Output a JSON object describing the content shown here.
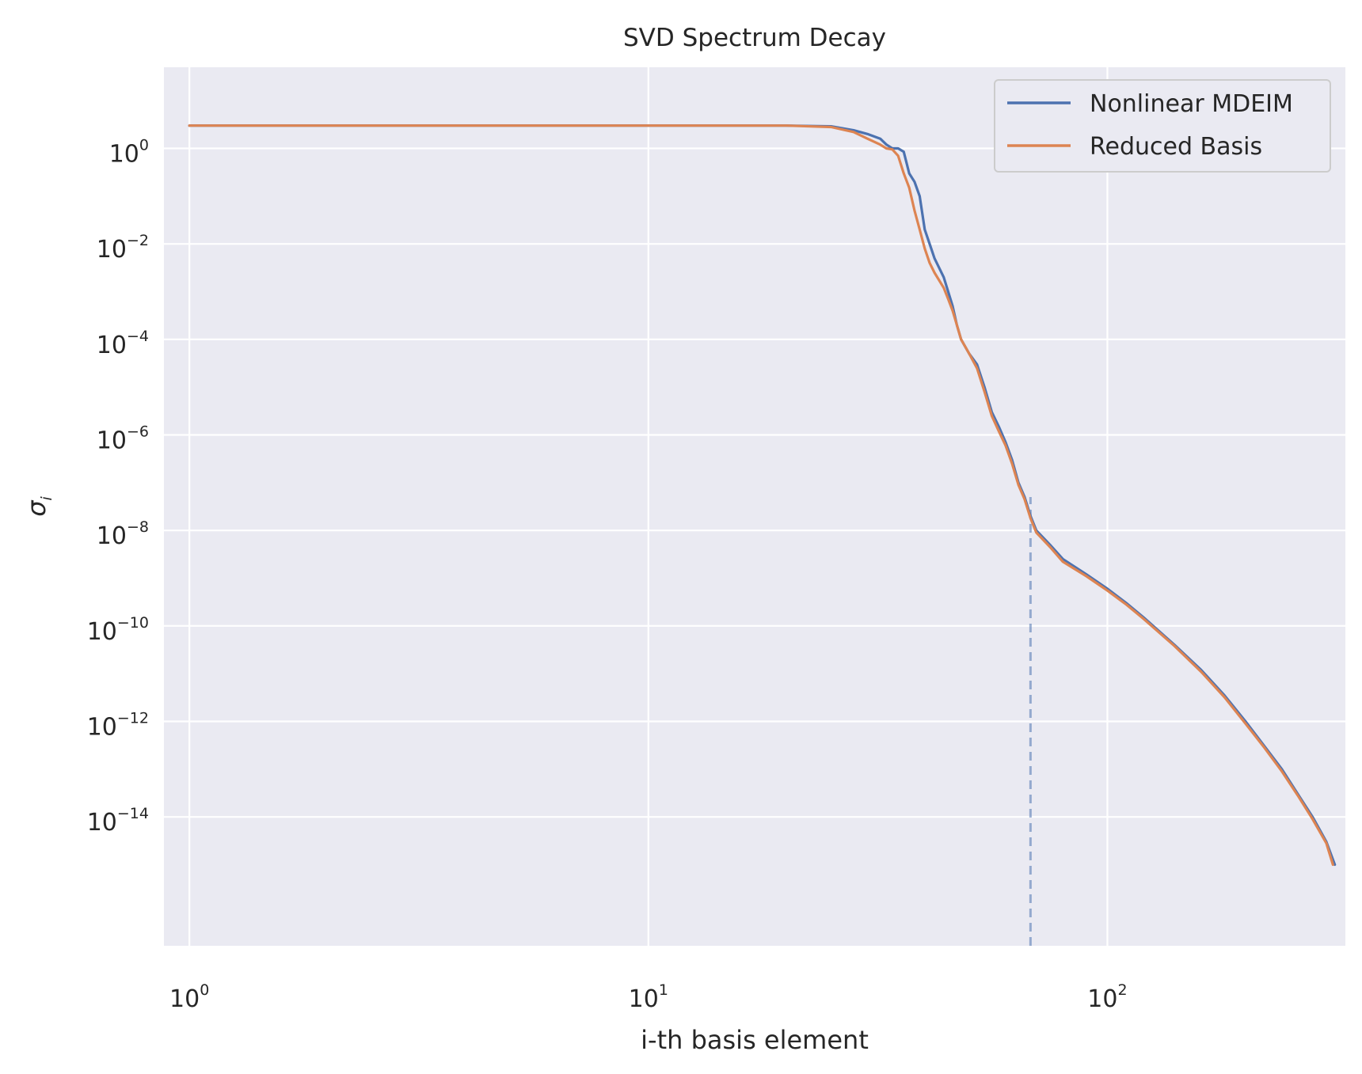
{
  "chart_data": {
    "type": "line",
    "title": "SVD Spectrum Decay",
    "xlabel": "i-th basis element",
    "ylabel": "σ",
    "ylabel_subscript": "i",
    "xscale": "log",
    "yscale": "log",
    "xlim": [
      0.88,
      330
    ],
    "ylim": [
      2e-17,
      50.0
    ],
    "grid": true,
    "background": "#eaeaf2",
    "legend_position": "top-right",
    "x_ticks": [
      {
        "base": "10",
        "exp": "0",
        "value": 1
      },
      {
        "base": "10",
        "exp": "1",
        "value": 10
      },
      {
        "base": "10",
        "exp": "2",
        "value": 100
      }
    ],
    "y_ticks": [
      {
        "base": "10",
        "exp": "0",
        "value": 1
      },
      {
        "base": "10",
        "exp": "−2",
        "value": 0.01
      },
      {
        "base": "10",
        "exp": "−4",
        "value": 0.0001
      },
      {
        "base": "10",
        "exp": "−6",
        "value": 1e-06
      },
      {
        "base": "10",
        "exp": "−8",
        "value": 1e-08
      },
      {
        "base": "10",
        "exp": "−10",
        "value": 1e-10
      },
      {
        "base": "10",
        "exp": "−12",
        "value": 1e-12
      },
      {
        "base": "10",
        "exp": "−14",
        "value": 1e-14
      }
    ],
    "series": [
      {
        "name": "Nonlinear MDEIM",
        "color": "#4c72b0",
        "points": [
          [
            1,
            3.0
          ],
          [
            10,
            3.0
          ],
          [
            20,
            3.0
          ],
          [
            25,
            2.9
          ],
          [
            28,
            2.4
          ],
          [
            30,
            2.0
          ],
          [
            32,
            1.6
          ],
          [
            33,
            1.2
          ],
          [
            34,
            1.0
          ],
          [
            35,
            1.0
          ],
          [
            36,
            0.85
          ],
          [
            37,
            0.3
          ],
          [
            38,
            0.2
          ],
          [
            39,
            0.1
          ],
          [
            40,
            0.02
          ],
          [
            41,
            0.01
          ],
          [
            42,
            0.005
          ],
          [
            44,
            0.002
          ],
          [
            45,
            0.001
          ],
          [
            46,
            0.0005
          ],
          [
            47,
            0.0002
          ],
          [
            48,
            0.0001
          ],
          [
            50,
            5e-05
          ],
          [
            52,
            3e-05
          ],
          [
            54,
            1e-05
          ],
          [
            56,
            3e-06
          ],
          [
            58,
            1.5e-06
          ],
          [
            60,
            7e-07
          ],
          [
            62,
            3e-07
          ],
          [
            64,
            1e-07
          ],
          [
            66,
            5e-08
          ],
          [
            68,
            2e-08
          ],
          [
            70,
            1e-08
          ],
          [
            75,
            5e-09
          ],
          [
            80,
            2.5e-09
          ],
          [
            90,
            1.2e-09
          ],
          [
            100,
            6e-10
          ],
          [
            110,
            3e-10
          ],
          [
            120,
            1.5e-10
          ],
          [
            140,
            4e-11
          ],
          [
            160,
            1.2e-11
          ],
          [
            180,
            3.5e-12
          ],
          [
            200,
            1e-12
          ],
          [
            220,
            3e-13
          ],
          [
            240,
            1e-13
          ],
          [
            260,
            3e-14
          ],
          [
            280,
            1e-14
          ],
          [
            300,
            3e-15
          ],
          [
            313,
            1e-15
          ]
        ]
      },
      {
        "name": "Reduced Basis",
        "color": "#dd8452",
        "points": [
          [
            1,
            3.0
          ],
          [
            10,
            3.0
          ],
          [
            20,
            3.0
          ],
          [
            25,
            2.8
          ],
          [
            28,
            2.2
          ],
          [
            30,
            1.6
          ],
          [
            32,
            1.2
          ],
          [
            33,
            1.0
          ],
          [
            34,
            0.95
          ],
          [
            35,
            0.7
          ],
          [
            36,
            0.3
          ],
          [
            37,
            0.15
          ],
          [
            38,
            0.05
          ],
          [
            39,
            0.02
          ],
          [
            40,
            0.008
          ],
          [
            41,
            0.004
          ],
          [
            42,
            0.0025
          ],
          [
            44,
            0.0012
          ],
          [
            45,
            0.0007
          ],
          [
            46,
            0.0004
          ],
          [
            47,
            0.0002
          ],
          [
            48,
            0.0001
          ],
          [
            50,
            5e-05
          ],
          [
            52,
            2.5e-05
          ],
          [
            54,
            8e-06
          ],
          [
            56,
            2.5e-06
          ],
          [
            58,
            1.2e-06
          ],
          [
            60,
            6e-07
          ],
          [
            62,
            2.5e-07
          ],
          [
            64,
            9e-08
          ],
          [
            66,
            4.5e-08
          ],
          [
            68,
            1.8e-08
          ],
          [
            70,
            9e-09
          ],
          [
            75,
            4.5e-09
          ],
          [
            80,
            2.2e-09
          ],
          [
            90,
            1.1e-09
          ],
          [
            100,
            5.5e-10
          ],
          [
            110,
            2.8e-10
          ],
          [
            120,
            1.4e-10
          ],
          [
            140,
            3.8e-11
          ],
          [
            160,
            1.1e-11
          ],
          [
            180,
            3.2e-12
          ],
          [
            200,
            9e-13
          ],
          [
            220,
            2.8e-13
          ],
          [
            240,
            9e-14
          ],
          [
            260,
            2.8e-14
          ],
          [
            280,
            9e-15
          ],
          [
            300,
            2.8e-15
          ],
          [
            310,
            1e-15
          ]
        ]
      }
    ],
    "annotations": [
      {
        "kind": "vertical-dashed-line",
        "x": 68,
        "y_from": 2e-17,
        "y_to": 5e-08,
        "color": "#4c72b0"
      }
    ]
  }
}
